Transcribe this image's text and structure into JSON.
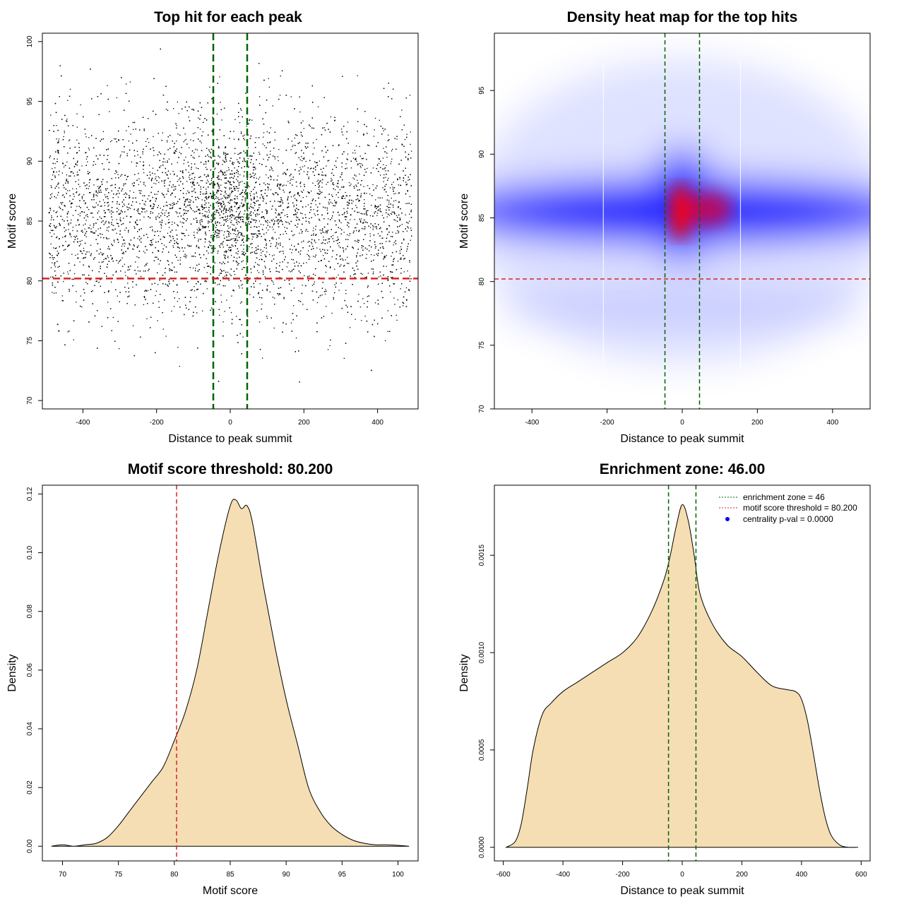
{
  "colors": {
    "points": "#000000",
    "enrichment_line": "#006400",
    "threshold_line": "#dd2222",
    "density_fill": "#f5deb3",
    "heat_low": "#ffffff",
    "heat_mid": "#0000ff",
    "heat_high": "#ff0000",
    "legend_point": "#0000ff"
  },
  "chart_data": [
    {
      "type": "scatter",
      "title": "Top hit for each peak",
      "xlabel": "Distance to peak summit",
      "ylabel": "Motif score",
      "xlim": [
        -510,
        510
      ],
      "ylim": [
        69.3,
        100.7
      ],
      "xticks": [
        -400,
        -200,
        0,
        200,
        400
      ],
      "yticks": [
        70,
        75,
        80,
        85,
        90,
        95,
        100
      ],
      "x_range": [
        -492,
        492
      ],
      "score_mean": 85.5,
      "score_sd": 4.2,
      "central_score_mean": 86.0,
      "central_score_sd": 3.0,
      "vlines": [
        -46,
        46
      ],
      "hline": 80.2
    },
    {
      "type": "heatmap",
      "title": "Density heat map for the top hits",
      "xlabel": "Distance to peak summit",
      "ylabel": "Motif score",
      "xlim": [
        -500,
        500
      ],
      "ylim": [
        70,
        99.5
      ],
      "xticks": [
        -400,
        -200,
        0,
        200,
        400
      ],
      "yticks": [
        70,
        75,
        80,
        85,
        90,
        95
      ],
      "peak": [
        0,
        85.5
      ],
      "vlines": [
        -46,
        46
      ],
      "hline": 80.2
    },
    {
      "type": "area",
      "title": "Motif score threshold: 80.200",
      "xlabel": "Motif score",
      "ylabel": "Density",
      "xlim": [
        68.2,
        101.8
      ],
      "ylim": [
        -0.005,
        0.123
      ],
      "xticks": [
        70,
        75,
        80,
        85,
        90,
        95,
        100
      ],
      "yticks": [
        0.0,
        0.02,
        0.04,
        0.06,
        0.08,
        0.1,
        0.12
      ],
      "ytick_labels": [
        "0.00",
        "0.02",
        "0.04",
        "0.06",
        "0.08",
        "0.10",
        "0.12"
      ],
      "x": [
        69,
        70,
        71,
        72,
        73,
        74,
        75,
        76,
        77,
        78,
        79,
        80,
        81,
        82,
        83,
        84,
        85,
        85.5,
        86,
        86.5,
        87,
        88,
        89,
        90,
        91,
        92,
        93,
        94,
        95,
        96,
        97,
        98,
        99,
        100,
        101
      ],
      "y": [
        0.0,
        0.0005,
        0.0,
        0.0005,
        0.001,
        0.003,
        0.007,
        0.012,
        0.017,
        0.022,
        0.027,
        0.036,
        0.046,
        0.06,
        0.08,
        0.1,
        0.116,
        0.118,
        0.115,
        0.116,
        0.11,
        0.088,
        0.068,
        0.05,
        0.035,
        0.02,
        0.012,
        0.007,
        0.004,
        0.002,
        0.001,
        0.0005,
        0.0005,
        0.0003,
        0.0
      ],
      "vline": 80.2
    },
    {
      "type": "area",
      "title": "Enrichment zone: 46.00",
      "xlabel": "Distance to peak summit",
      "ylabel": "Density",
      "xlim": [
        -630,
        630
      ],
      "ylim": [
        -7e-05,
        0.00186
      ],
      "xticks": [
        -600,
        -400,
        -200,
        0,
        200,
        400,
        600
      ],
      "yticks": [
        0.0,
        0.0005,
        0.001,
        0.0015
      ],
      "ytick_labels": [
        "0.0000",
        "0.0005",
        "0.0010",
        "0.0015"
      ],
      "x": [
        -590,
        -560,
        -540,
        -520,
        -500,
        -470,
        -440,
        -400,
        -350,
        -300,
        -250,
        -200,
        -150,
        -100,
        -60,
        -40,
        -20,
        0,
        20,
        40,
        60,
        100,
        150,
        200,
        250,
        300,
        350,
        380,
        400,
        420,
        440,
        460,
        480,
        500,
        530,
        560,
        590
      ],
      "y": [
        0.0,
        3e-05,
        0.00012,
        0.0003,
        0.0005,
        0.00068,
        0.00074,
        0.0008,
        0.00085,
        0.0009,
        0.00095,
        0.001,
        0.00108,
        0.00122,
        0.00138,
        0.0015,
        0.00165,
        0.00176,
        0.00168,
        0.0015,
        0.0013,
        0.00115,
        0.00104,
        0.00098,
        0.0009,
        0.00083,
        0.00081,
        0.0008,
        0.00076,
        0.00065,
        0.00048,
        0.0003,
        0.00015,
        6e-05,
        1e-05,
        0.0,
        0.0
      ],
      "vlines": [
        -46,
        46
      ],
      "legend": [
        {
          "label": "enrichment zone = 46",
          "kind": "dotted-line",
          "color": "#006400"
        },
        {
          "label": "motif score threshold = 80.200",
          "kind": "dotted-line",
          "color": "#dd2222"
        },
        {
          "label": "centrality p-val = 0.0000",
          "kind": "point",
          "color": "#0000ff"
        }
      ],
      "legend_position": "top-right"
    }
  ]
}
